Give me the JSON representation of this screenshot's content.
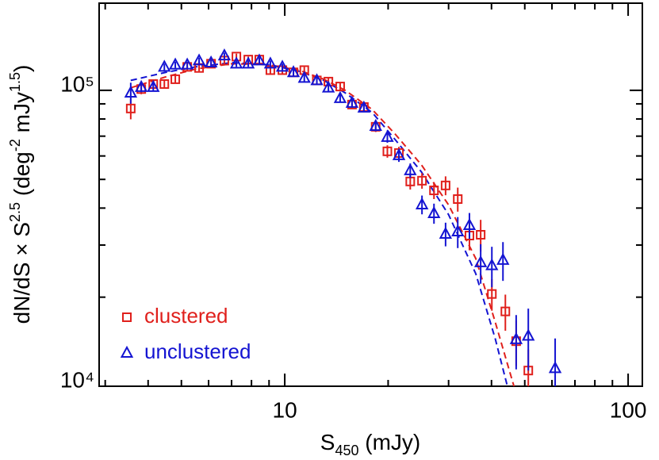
{
  "chart_data": {
    "type": "scatter",
    "x_label": [
      "S",
      "450",
      " (mJy)"
    ],
    "y_label": [
      "dN/dS × S",
      "2.5",
      " (deg",
      "-2",
      " mJy",
      "1.5",
      ")"
    ],
    "log_x": true,
    "log_y": true,
    "xlim": [
      2.88,
      110
    ],
    "ylim": [
      10000,
      197000
    ],
    "xticks": [
      10,
      100
    ],
    "xminorticks": [
      3,
      4,
      5,
      6,
      7,
      8,
      9,
      20,
      30,
      40,
      50,
      60,
      70,
      80,
      90
    ],
    "yticks": [
      {
        "value": 10000,
        "label": "10⁴"
      },
      {
        "value": 100000,
        "label": "10⁵"
      }
    ],
    "yminorticks": [
      20000,
      30000,
      40000,
      50000,
      60000,
      70000,
      80000,
      90000
    ],
    "legend": "lower left",
    "series": [
      {
        "name": "clustered",
        "color": "#e0201c",
        "marker": "square",
        "x": [
          3.56,
          3.82,
          4.14,
          4.46,
          4.8,
          5.2,
          5.63,
          6.1,
          6.67,
          7.23,
          7.83,
          8.43,
          9.08,
          9.84,
          10.6,
          11.4,
          12.4,
          13.4,
          14.5,
          15.7,
          17.0,
          18.4,
          19.9,
          21.5,
          23.2,
          25.1,
          27.2,
          29.4,
          31.9,
          34.5,
          37.2,
          40.1,
          43.9,
          47.2,
          51.2
        ],
        "values": [
          86800,
          101000,
          105000,
          105000,
          109000,
          120000,
          119000,
          123000,
          126000,
          130000,
          127000,
          127000,
          117000,
          117000,
          115000,
          117000,
          108000,
          107000,
          103000,
          89500,
          87800,
          75300,
          62200,
          61400,
          49200,
          49500,
          45900,
          47700,
          42900,
          32300,
          32500,
          20500,
          17900,
          14200,
          11300
        ],
        "errors": [
          7000,
          4000,
          3500,
          3000,
          3000,
          3000,
          3000,
          3000,
          3000,
          3000,
          3000,
          3000,
          3000,
          3000,
          3000,
          3000,
          3000,
          3000,
          3000,
          3000,
          3000,
          3000,
          3000,
          3000,
          3000,
          3000,
          3000,
          3500,
          4000,
          3500,
          4000,
          2500,
          2500,
          2500,
          2000
        ]
      },
      {
        "name": "unclustered",
        "color": "#1414d2",
        "marker": "triangle",
        "x": [
          3.56,
          3.82,
          4.14,
          4.46,
          4.8,
          5.2,
          5.63,
          6.1,
          6.67,
          7.23,
          7.83,
          8.43,
          9.08,
          9.84,
          10.6,
          11.4,
          12.4,
          13.4,
          14.5,
          15.7,
          17.0,
          18.4,
          19.9,
          21.5,
          23.2,
          25.1,
          27.2,
          29.4,
          31.9,
          34.5,
          37.2,
          40.1,
          43.2,
          47.2,
          51.2,
          61.3
        ],
        "values": [
          98100,
          102500,
          102500,
          120000,
          122000,
          122000,
          126000,
          124000,
          131000,
          123000,
          123000,
          126000,
          123000,
          120000,
          115000,
          110000,
          108000,
          102000,
          94000,
          90600,
          87300,
          75700,
          69500,
          60300,
          53600,
          41100,
          38400,
          32700,
          33300,
          35000,
          26200,
          25600,
          26700,
          14400,
          14800,
          11500
        ],
        "errors": [
          8000,
          4000,
          3500,
          3000,
          3000,
          3000,
          3000,
          3000,
          3000,
          3000,
          3000,
          3000,
          3000,
          3000,
          3000,
          3000,
          3000,
          3000,
          3000,
          3000,
          3000,
          3000,
          3000,
          3000,
          3000,
          3000,
          3000,
          3000,
          4000,
          3500,
          4000,
          4000,
          4000,
          3000,
          3500,
          3000
        ]
      }
    ],
    "models": [
      {
        "color": "#e0201c",
        "x": [
          3.56,
          4.5,
          5.5,
          7,
          9,
          11,
          13,
          15,
          18,
          21,
          25,
          30,
          36,
          41,
          46.5
        ],
        "values": [
          102000,
          111000,
          118000,
          123000,
          122000,
          117000,
          109000,
          100000,
          86000,
          71000,
          56000,
          41000,
          27000,
          16500,
          10000
        ]
      },
      {
        "color": "#1414d2",
        "x": [
          3.56,
          4.5,
          5.5,
          7,
          9,
          11,
          13,
          15,
          18,
          21,
          25,
          30,
          36,
          41,
          44.5
        ],
        "values": [
          108000,
          115000,
          120000,
          124000,
          122000,
          116000,
          108000,
          98000,
          84000,
          68000,
          53000,
          38000,
          24000,
          14500,
          10000
        ]
      }
    ]
  }
}
